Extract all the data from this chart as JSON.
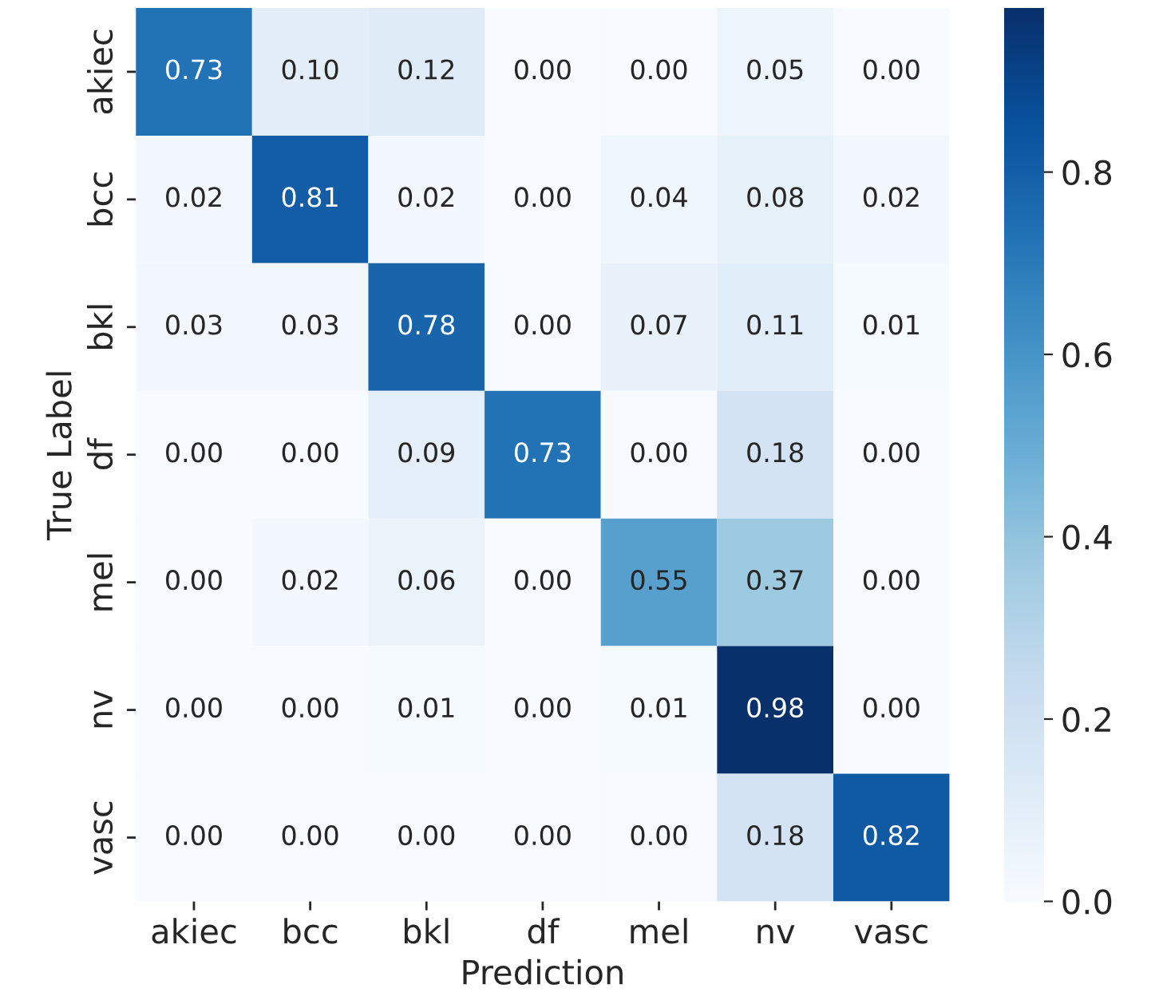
{
  "chart_data": {
    "type": "heatmap",
    "xlabel": "Prediction",
    "ylabel": "True Label",
    "categories": [
      "akiec",
      "bcc",
      "bkl",
      "df",
      "mel",
      "nv",
      "vasc"
    ],
    "y_categories": [
      "akiec",
      "bcc",
      "bkl",
      "df",
      "mel",
      "nv",
      "vasc"
    ],
    "cells": [
      [
        0.73,
        0.1,
        0.12,
        0.0,
        0.0,
        0.05,
        0.0
      ],
      [
        0.02,
        0.81,
        0.02,
        0.0,
        0.04,
        0.08,
        0.02
      ],
      [
        0.03,
        0.03,
        0.78,
        0.0,
        0.07,
        0.11,
        0.01
      ],
      [
        0.0,
        0.0,
        0.09,
        0.73,
        0.0,
        0.18,
        0.0
      ],
      [
        0.0,
        0.02,
        0.06,
        0.0,
        0.55,
        0.37,
        0.0
      ],
      [
        0.0,
        0.0,
        0.01,
        0.0,
        0.01,
        0.98,
        0.0
      ],
      [
        0.0,
        0.0,
        0.0,
        0.0,
        0.0,
        0.18,
        0.82
      ]
    ],
    "clim": [
      0,
      0.98
    ],
    "cticks": [
      {
        "value": 0,
        "label": "0.0"
      },
      {
        "value": 0.2,
        "label": "0.2"
      },
      {
        "value": 0.4,
        "label": "0.4"
      },
      {
        "value": 0.6,
        "label": "0.6"
      },
      {
        "value": 0.8,
        "label": "0.8"
      }
    ],
    "cell_labels": [
      [
        "0.73",
        "0.10",
        "0.12",
        "0.00",
        "0.00",
        "0.05",
        "0.00"
      ],
      [
        "0.02",
        "0.81",
        "0.02",
        "0.00",
        "0.04",
        "0.08",
        "0.02"
      ],
      [
        "0.03",
        "0.03",
        "0.78",
        "0.00",
        "0.07",
        "0.11",
        "0.01"
      ],
      [
        "0.00",
        "0.00",
        "0.09",
        "0.73",
        "0.00",
        "0.18",
        "0.00"
      ],
      [
        "0.00",
        "0.02",
        "0.06",
        "0.00",
        "0.55",
        "0.37",
        "0.00"
      ],
      [
        "0.00",
        "0.00",
        "0.01",
        "0.00",
        "0.01",
        "0.98",
        "0.00"
      ],
      [
        "0.00",
        "0.00",
        "0.00",
        "0.00",
        "0.00",
        "0.18",
        "0.82"
      ]
    ]
  }
}
